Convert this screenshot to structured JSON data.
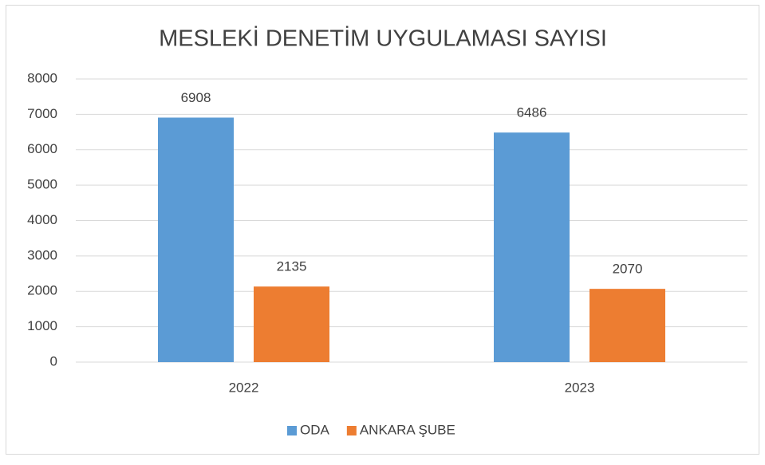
{
  "chart_data": {
    "type": "bar",
    "title": "MESLEKİ DENETİM UYGULAMASI SAYISI",
    "categories": [
      "2022",
      "2023"
    ],
    "series": [
      {
        "name": "ODA",
        "color": "#5b9bd5",
        "values": [
          6908,
          6486
        ]
      },
      {
        "name": "ANKARA ŞUBE",
        "color": "#ed7d31",
        "values": [
          2135,
          2070
        ]
      }
    ],
    "ylim": [
      0,
      8000
    ],
    "yticks": [
      0,
      1000,
      2000,
      3000,
      4000,
      5000,
      6000,
      7000,
      8000
    ],
    "grid": true,
    "legend": "bottom"
  }
}
